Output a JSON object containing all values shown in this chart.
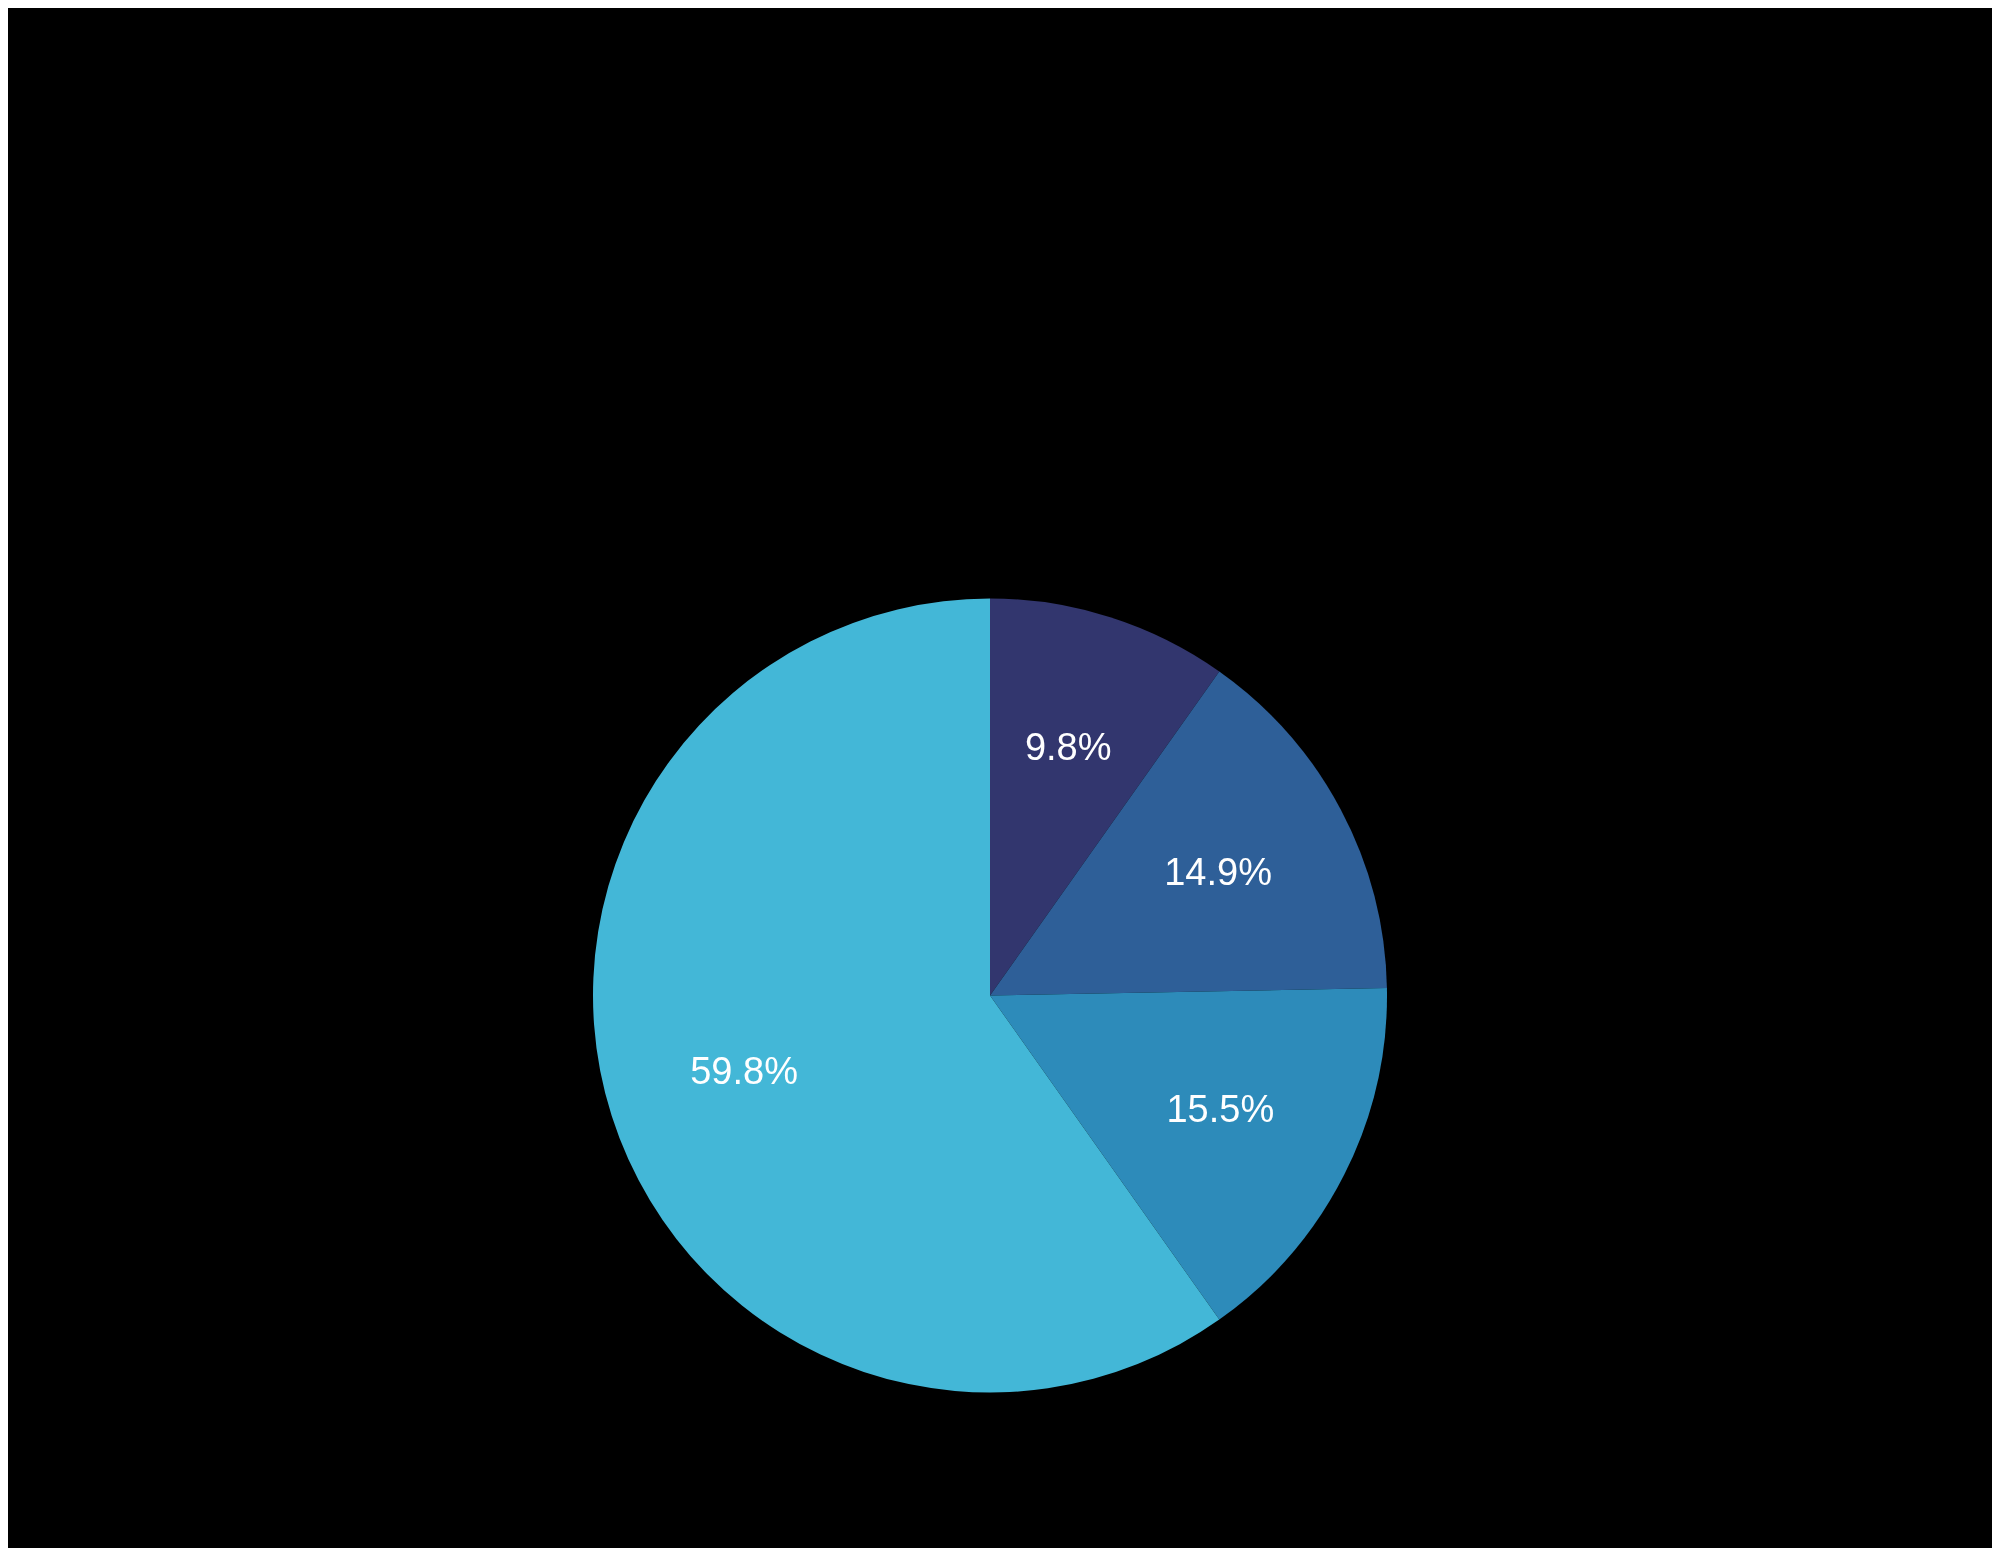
{
  "chart_data": {
    "type": "pie",
    "categories": [
      null,
      null,
      null,
      null
    ],
    "values": [
      9.8,
      14.9,
      15.5,
      59.8
    ],
    "colors": [
      "#32366e",
      "#2e5f98",
      "#2d8bba",
      "#43b7d7"
    ],
    "value_labels": [
      "9.8%",
      "14.9%",
      "15.5%",
      "59.8%"
    ],
    "legend": false
  }
}
